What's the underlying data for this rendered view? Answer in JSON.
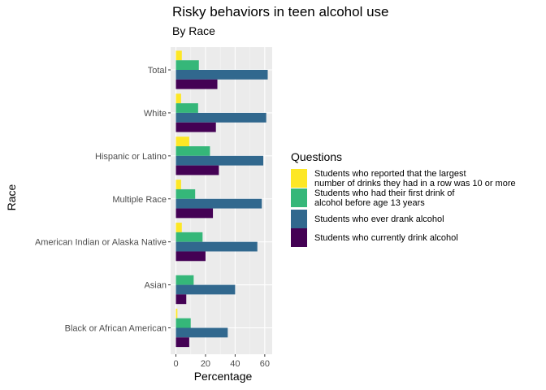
{
  "chart_data": {
    "type": "bar",
    "orientation": "horizontal",
    "title": "Risky behaviors in teen alcohol use",
    "subtitle": "By Race",
    "xlabel": "Percentage",
    "ylabel": "Race",
    "xlim": [
      0,
      65
    ],
    "xticks": [
      "0",
      "20",
      "40",
      "60"
    ],
    "xtick_values": [
      0,
      20,
      40,
      60
    ],
    "grid": true,
    "legend_title": "Questions",
    "legend_position": "right",
    "categories": [
      "Total",
      "White",
      "Hispanic or Latino",
      "Multiple Race",
      "American Indian or Alaska Native",
      "Asian",
      "Black or African American"
    ],
    "series": [
      {
        "name": "Students who reported that the largest\nnumber of drinks they had in a row was 10 or more",
        "color": "#FDE725",
        "values": [
          4.0,
          3.5,
          9.0,
          3.5,
          4.0,
          0.0,
          1.0
        ]
      },
      {
        "name": "Students who had their first drink of\nalcohol before age 13 years",
        "color": "#35B779",
        "values": [
          15.5,
          15.0,
          23.0,
          13.0,
          18.0,
          12.0,
          10.0
        ]
      },
      {
        "name": "Students who ever drank alcohol",
        "color": "#31688E",
        "values": [
          62.0,
          61.0,
          59.0,
          58.0,
          55.0,
          40.0,
          35.0
        ]
      },
      {
        "name": "Students who currently drink alcohol",
        "color": "#440154",
        "values": [
          28.0,
          27.0,
          29.0,
          25.0,
          20.0,
          7.0,
          9.0
        ]
      }
    ]
  }
}
